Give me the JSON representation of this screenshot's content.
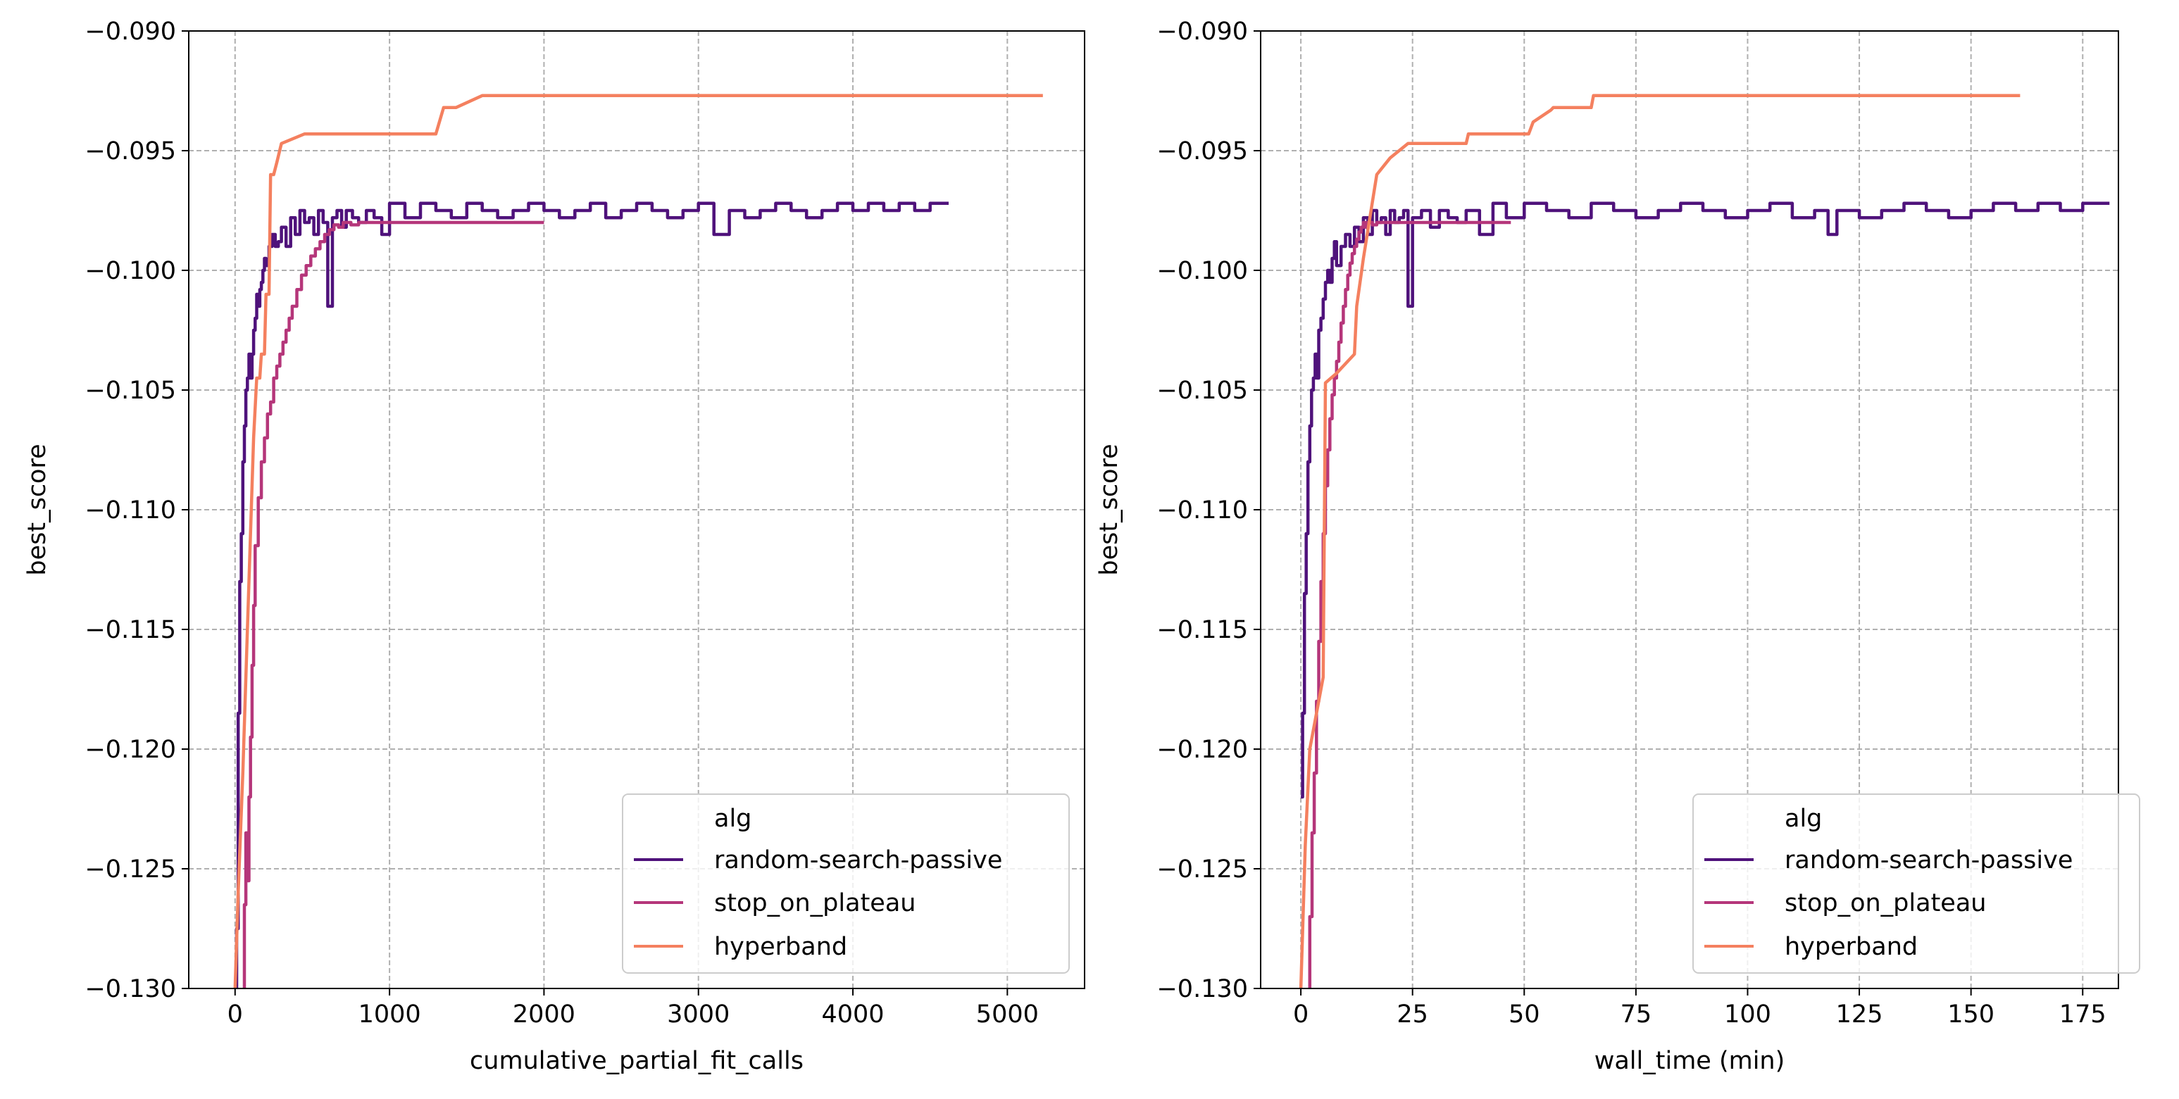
{
  "chart_data": [
    {
      "type": "line",
      "title": "",
      "xlabel": "cumulative_partial_fit_calls",
      "ylabel": "best_score",
      "xlim": [
        -300,
        5500
      ],
      "ylim": [
        -0.13,
        -0.09
      ],
      "xticks": [
        0,
        1000,
        2000,
        3000,
        4000,
        5000
      ],
      "yticks": [
        -0.13,
        -0.125,
        -0.12,
        -0.115,
        -0.11,
        -0.105,
        -0.1,
        -0.095,
        -0.09
      ],
      "xtick_labels": [
        "0",
        "1000",
        "2000",
        "3000",
        "4000",
        "5000"
      ],
      "ytick_labels": [
        "−0.130",
        "−0.125",
        "−0.120",
        "−0.115",
        "−0.110",
        "−0.105",
        "−0.100",
        "−0.095",
        "−0.090"
      ],
      "grid": true,
      "legend": {
        "title": "alg",
        "placement": "lower-right",
        "entries": [
          "random-search-passive",
          "stop_on_plateau",
          "hyperband"
        ]
      },
      "series": [
        {
          "name": "random-search-passive",
          "color": "#4f127b",
          "line": "step",
          "x": [
            0,
            10,
            20,
            30,
            40,
            50,
            60,
            70,
            80,
            90,
            100,
            110,
            120,
            130,
            140,
            150,
            160,
            170,
            180,
            190,
            200,
            220,
            240,
            260,
            280,
            300,
            330,
            360,
            390,
            420,
            450,
            480,
            510,
            540,
            570,
            600,
            630,
            660,
            690,
            720,
            760,
            800,
            850,
            900,
            950,
            1000,
            1100,
            1200,
            1300,
            1400,
            1500,
            1600,
            1700,
            1800,
            1900,
            2000,
            2100,
            2200,
            2300,
            2400,
            2500,
            2600,
            2700,
            2800,
            2900,
            3000,
            3100,
            3200,
            3300,
            3400,
            3500,
            3600,
            3700,
            3800,
            3900,
            4000,
            4100,
            4200,
            4300,
            4400,
            4500,
            4620
          ],
          "y": [
            -0.133,
            -0.1275,
            -0.1185,
            -0.113,
            -0.111,
            -0.108,
            -0.1065,
            -0.105,
            -0.1045,
            -0.1035,
            -0.1045,
            -0.1035,
            -0.1025,
            -0.102,
            -0.101,
            -0.1015,
            -0.1008,
            -0.1005,
            -0.1,
            -0.0995,
            -0.0998,
            -0.099,
            -0.0985,
            -0.099,
            -0.0988,
            -0.0982,
            -0.099,
            -0.0978,
            -0.0985,
            -0.0975,
            -0.098,
            -0.0978,
            -0.0985,
            -0.0975,
            -0.098,
            -0.1015,
            -0.0978,
            -0.0975,
            -0.0982,
            -0.0975,
            -0.0978,
            -0.098,
            -0.0975,
            -0.0978,
            -0.0985,
            -0.0972,
            -0.0978,
            -0.0972,
            -0.0975,
            -0.0978,
            -0.0972,
            -0.0975,
            -0.0978,
            -0.0975,
            -0.0972,
            -0.0975,
            -0.0978,
            -0.0975,
            -0.0972,
            -0.0978,
            -0.0975,
            -0.0972,
            -0.0975,
            -0.0978,
            -0.0975,
            -0.0972,
            -0.0985,
            -0.0975,
            -0.0978,
            -0.0975,
            -0.0972,
            -0.0975,
            -0.0978,
            -0.0975,
            -0.0972,
            -0.0975,
            -0.0972,
            -0.0975,
            -0.0972,
            -0.0975,
            -0.0972,
            -0.0972
          ]
        },
        {
          "name": "stop_on_plateau",
          "color": "#b5367a",
          "line": "step",
          "x": [
            50,
            60,
            70,
            80,
            90,
            100,
            110,
            120,
            130,
            150,
            170,
            190,
            210,
            230,
            250,
            270,
            290,
            310,
            330,
            350,
            370,
            400,
            430,
            460,
            490,
            520,
            550,
            580,
            610,
            640,
            670,
            700,
            750,
            800,
            900,
            1000,
            1200,
            1400,
            1600,
            1800,
            2000
          ],
          "y": [
            -0.135,
            -0.1265,
            -0.1235,
            -0.1255,
            -0.122,
            -0.1195,
            -0.1165,
            -0.114,
            -0.1115,
            -0.1095,
            -0.108,
            -0.107,
            -0.106,
            -0.1055,
            -0.1045,
            -0.104,
            -0.1035,
            -0.103,
            -0.1025,
            -0.102,
            -0.1015,
            -0.1008,
            -0.1002,
            -0.0998,
            -0.0994,
            -0.0991,
            -0.0988,
            -0.0985,
            -0.0983,
            -0.0981,
            -0.0982,
            -0.098,
            -0.0981,
            -0.098,
            -0.098,
            -0.098,
            -0.098,
            -0.098,
            -0.098,
            -0.098,
            -0.098
          ]
        },
        {
          "name": "hyperband",
          "color": "#f4805f",
          "line": "linear",
          "x": [
            0,
            20,
            50,
            80,
            120,
            140,
            160,
            170,
            190,
            200,
            220,
            230,
            250,
            270,
            300,
            450,
            1250,
            1300,
            1350,
            1430,
            1600,
            5230
          ],
          "y": [
            -0.13,
            -0.126,
            -0.121,
            -0.115,
            -0.107,
            -0.1045,
            -0.1045,
            -0.1035,
            -0.1035,
            -0.101,
            -0.101,
            -0.096,
            -0.096,
            -0.0955,
            -0.0947,
            -0.0943,
            -0.0943,
            -0.0943,
            -0.0932,
            -0.0932,
            -0.0927,
            -0.0927
          ]
        }
      ]
    },
    {
      "type": "line",
      "title": "",
      "xlabel": "wall_time (min)",
      "ylabel": "best_score",
      "xlim": [
        -9,
        183
      ],
      "ylim": [
        -0.13,
        -0.09
      ],
      "xticks": [
        0,
        25,
        50,
        75,
        100,
        125,
        150,
        175
      ],
      "yticks": [
        -0.13,
        -0.125,
        -0.12,
        -0.115,
        -0.11,
        -0.105,
        -0.1,
        -0.095,
        -0.09
      ],
      "xtick_labels": [
        "0",
        "25",
        "50",
        "75",
        "100",
        "125",
        "150",
        "175"
      ],
      "ytick_labels": [
        "−0.130",
        "−0.125",
        "−0.120",
        "−0.115",
        "−0.110",
        "−0.105",
        "−0.100",
        "−0.095",
        "−0.090"
      ],
      "grid": true,
      "legend": {
        "title": "alg",
        "placement": "lower-right",
        "entries": [
          "random-search-passive",
          "stop_on_plateau",
          "hyperband"
        ]
      },
      "series": [
        {
          "name": "random-search-passive",
          "color": "#4f127b",
          "line": "step",
          "x": [
            0,
            0.4,
            0.8,
            1.2,
            1.6,
            2.0,
            2.4,
            2.8,
            3.2,
            3.6,
            4.0,
            4.5,
            5.0,
            5.5,
            6.0,
            6.5,
            7.0,
            7.5,
            8.0,
            9.0,
            10.0,
            11.0,
            12.0,
            13.0,
            14.0,
            15.0,
            16.0,
            17.0,
            18.0,
            19.0,
            20.0,
            21.0,
            22.0,
            23.0,
            24.0,
            25.0,
            27.0,
            29.0,
            31.0,
            33.0,
            35.0,
            37.0,
            40.0,
            43.0,
            46.0,
            50.0,
            55.0,
            60.0,
            65.0,
            70.0,
            75.0,
            80.0,
            85.0,
            90.0,
            95.0,
            100.0,
            105.0,
            110.0,
            115.0,
            118.0,
            120.0,
            125.0,
            130.0,
            135.0,
            140.0,
            145.0,
            150.0,
            155.0,
            160.0,
            165.0,
            170.0,
            175.0,
            180.0
          ],
          "y": [
            -0.122,
            -0.1185,
            -0.1135,
            -0.111,
            -0.108,
            -0.1065,
            -0.105,
            -0.1045,
            -0.1035,
            -0.1045,
            -0.1025,
            -0.102,
            -0.1012,
            -0.1005,
            -0.1,
            -0.1005,
            -0.0995,
            -0.0988,
            -0.0998,
            -0.099,
            -0.0985,
            -0.099,
            -0.0982,
            -0.0988,
            -0.0978,
            -0.0985,
            -0.0975,
            -0.098,
            -0.0978,
            -0.0985,
            -0.0975,
            -0.098,
            -0.0978,
            -0.0975,
            -0.1015,
            -0.0978,
            -0.0975,
            -0.0982,
            -0.0975,
            -0.0978,
            -0.098,
            -0.0975,
            -0.0985,
            -0.0972,
            -0.0978,
            -0.0972,
            -0.0975,
            -0.0978,
            -0.0972,
            -0.0975,
            -0.0978,
            -0.0975,
            -0.0972,
            -0.0975,
            -0.0978,
            -0.0975,
            -0.0972,
            -0.0978,
            -0.0975,
            -0.0985,
            -0.0975,
            -0.0978,
            -0.0975,
            -0.0972,
            -0.0975,
            -0.0978,
            -0.0975,
            -0.0972,
            -0.0975,
            -0.0972,
            -0.0975,
            -0.0972,
            -0.0972
          ],
          "note_end_x": 181
        },
        {
          "name": "stop_on_plateau",
          "color": "#b5367a",
          "line": "step",
          "x": [
            1.5,
            2.0,
            2.5,
            3.0,
            3.5,
            4.0,
            4.5,
            5.0,
            5.5,
            6.0,
            6.5,
            7.0,
            7.5,
            8.0,
            8.5,
            9.0,
            9.5,
            10.0,
            10.5,
            11.0,
            11.5,
            12.0,
            12.5,
            13.0,
            13.5,
            14.0,
            14.5,
            15.0,
            16.0,
            17.0,
            18.0,
            20.0,
            22.0,
            25.0,
            30.0,
            35.0,
            40.0,
            47.0
          ],
          "y": [
            -0.135,
            -0.127,
            -0.1235,
            -0.121,
            -0.118,
            -0.1155,
            -0.113,
            -0.111,
            -0.109,
            -0.1075,
            -0.1062,
            -0.1052,
            -0.1045,
            -0.1038,
            -0.103,
            -0.1022,
            -0.1015,
            -0.1008,
            -0.1002,
            -0.0997,
            -0.0993,
            -0.099,
            -0.0987,
            -0.0984,
            -0.0982,
            -0.098,
            -0.0982,
            -0.098,
            -0.0981,
            -0.098,
            -0.098,
            -0.098,
            -0.098,
            -0.098,
            -0.098,
            -0.098,
            -0.098,
            -0.098
          ]
        },
        {
          "name": "hyperband",
          "color": "#f4805f",
          "line": "linear",
          "x": [
            0,
            1,
            2,
            4,
            5,
            5.5,
            8,
            12,
            12.5,
            14,
            17,
            20,
            24,
            25,
            37,
            37.5,
            51,
            52,
            56,
            56.5,
            65,
            65.5,
            161
          ],
          "y": [
            -0.13,
            -0.124,
            -0.12,
            -0.118,
            -0.117,
            -0.1047,
            -0.1043,
            -0.1035,
            -0.1015,
            -0.0995,
            -0.096,
            -0.0953,
            -0.0947,
            -0.0947,
            -0.0947,
            -0.0943,
            -0.0943,
            -0.0938,
            -0.0933,
            -0.0932,
            -0.0932,
            -0.0927,
            -0.0927
          ]
        }
      ]
    }
  ]
}
